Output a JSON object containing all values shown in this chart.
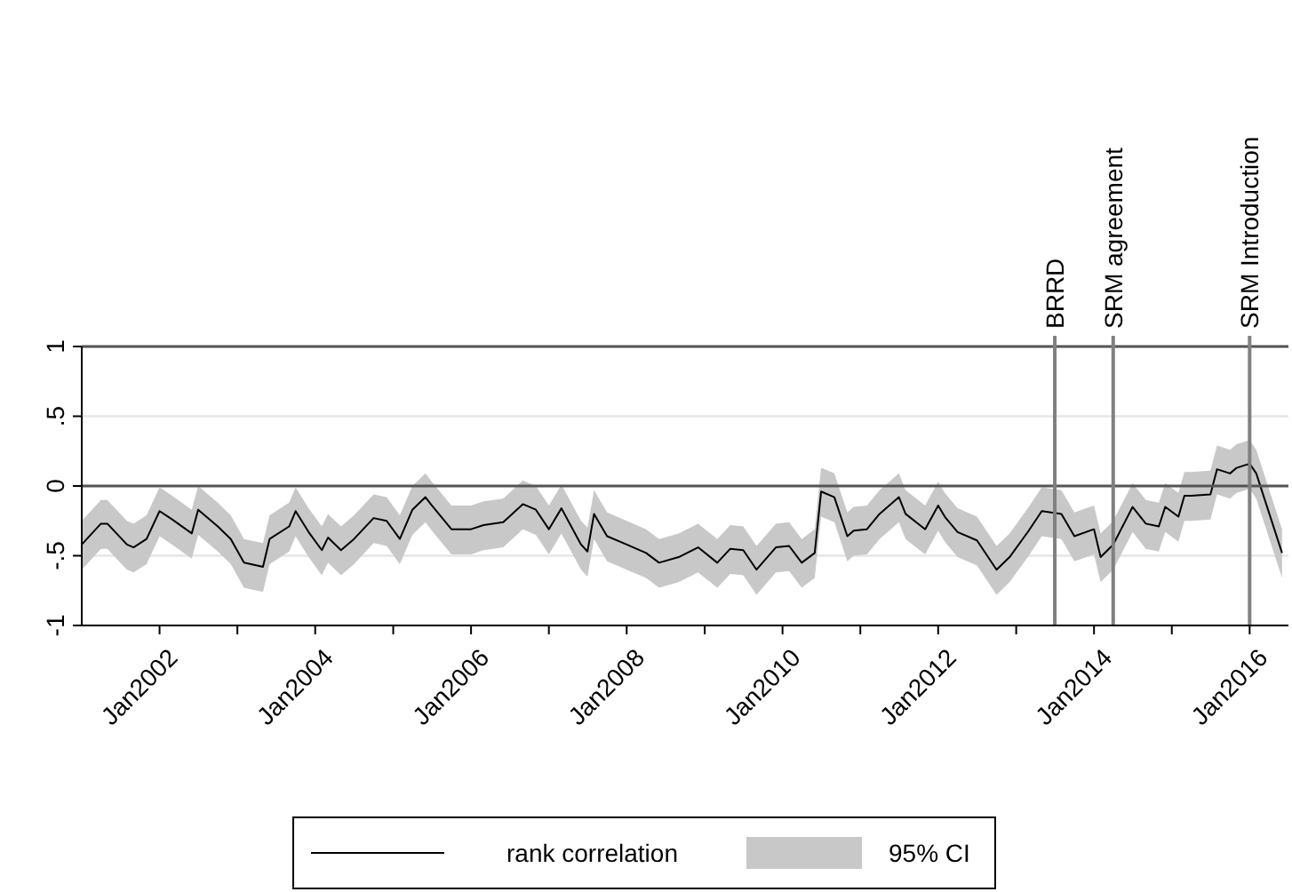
{
  "chart_data": {
    "type": "line",
    "ylim": [
      -1,
      1
    ],
    "yticks": [
      -1,
      {
        "value": -0.5,
        "label": "-.5"
      },
      0,
      {
        "value": 0.5,
        "label": ".5"
      },
      1
    ],
    "xlim": [
      "2001-01",
      "2016-07"
    ],
    "xticks": [
      {
        "value": "2002-01",
        "label": "Jan2002"
      },
      {
        "value": "2003-01",
        "label": null
      },
      {
        "value": "2004-01",
        "label": "Jan2004"
      },
      {
        "value": "2005-01",
        "label": null
      },
      {
        "value": "2006-01",
        "label": "Jan2006"
      },
      {
        "value": "2007-01",
        "label": null
      },
      {
        "value": "2008-01",
        "label": "Jan2008"
      },
      {
        "value": "2009-01",
        "label": null
      },
      {
        "value": "2010-01",
        "label": "Jan2010"
      },
      {
        "value": "2011-01",
        "label": null
      },
      {
        "value": "2012-01",
        "label": "Jan2012"
      },
      {
        "value": "2013-01",
        "label": null
      },
      {
        "value": "2014-01",
        "label": "Jan2014"
      },
      {
        "value": "2015-01",
        "label": null
      },
      {
        "value": "2016-01",
        "label": "Jan2016"
      }
    ],
    "grid": "y",
    "legend": "bottom",
    "annotations": [
      "95% CI"
    ],
    "line_style": "solid",
    "marker": "none",
    "x": [
      "2001-01",
      "2001-04",
      "2001-05",
      "2001-08",
      "2001-09",
      "2001-11",
      "2002-01",
      "2002-03",
      "2002-06",
      "2002-07",
      "2002-10",
      "2002-12",
      "2003-02",
      "2003-05",
      "2003-06",
      "2003-09",
      "2003-10",
      "2003-12",
      "2004-02",
      "2004-03",
      "2004-05",
      "2004-07",
      "2004-10",
      "2004-12",
      "2005-02",
      "2005-04",
      "2005-06",
      "2005-07",
      "2005-10",
      "2006-01",
      "2006-03",
      "2006-06",
      "2006-09",
      "2006-11",
      "2007-01",
      "2007-03",
      "2007-06",
      "2007-07",
      "2007-08",
      "2007-10",
      "2008-01",
      "2008-04",
      "2008-06",
      "2008-09",
      "2008-12",
      "2009-03",
      "2009-05",
      "2009-07",
      "2009-09",
      "2009-12",
      "2010-02",
      "2010-04",
      "2010-06",
      "2010-07",
      "2010-09",
      "2010-11",
      "2010-12",
      "2011-02",
      "2011-04",
      "2011-07",
      "2011-08",
      "2011-11",
      "2012-01",
      "2012-02",
      "2012-04",
      "2012-07",
      "2012-10",
      "2012-12",
      "2013-03",
      "2013-05",
      "2013-08",
      "2013-10",
      "2014-01",
      "2014-02",
      "2014-04",
      "2014-07",
      "2014-09",
      "2014-11",
      "2014-12",
      "2015-02",
      "2015-03",
      "2015-04",
      "2015-07",
      "2015-08",
      "2015-10",
      "2015-11",
      "2016-01",
      "2016-02",
      "2016-06"
    ],
    "series": [
      {
        "name": "rank correlation",
        "color": "#000000",
        "upper": [
          -0.25,
          -0.1,
          -0.1,
          -0.25,
          -0.27,
          -0.21,
          -0.01,
          -0.07,
          -0.17,
          0,
          -0.12,
          -0.21,
          -0.38,
          -0.41,
          -0.21,
          -0.12,
          -0.01,
          -0.16,
          -0.29,
          -0.2,
          -0.29,
          -0.21,
          -0.06,
          -0.08,
          -0.21,
          0,
          0.09,
          0.03,
          -0.14,
          -0.14,
          -0.11,
          -0.09,
          0.04,
          0,
          -0.14,
          0.01,
          -0.25,
          -0.3,
          -0.03,
          -0.19,
          -0.25,
          -0.31,
          -0.38,
          -0.34,
          -0.27,
          -0.38,
          -0.28,
          -0.29,
          -0.43,
          -0.27,
          -0.26,
          -0.38,
          -0.31,
          0.13,
          0.09,
          -0.19,
          -0.15,
          -0.14,
          -0.03,
          0.09,
          -0.03,
          -0.14,
          0.03,
          -0.05,
          -0.16,
          -0.22,
          -0.43,
          -0.34,
          -0.15,
          -0.01,
          -0.03,
          -0.19,
          -0.14,
          -0.34,
          -0.25,
          0.02,
          -0.1,
          -0.12,
          0.02,
          -0.05,
          0.1,
          0.1,
          0.11,
          0.29,
          0.26,
          0.3,
          0.33,
          0.26,
          -0.31
        ],
        "lower": [
          -0.6,
          -0.45,
          -0.45,
          -0.6,
          -0.62,
          -0.56,
          -0.36,
          -0.42,
          -0.52,
          -0.35,
          -0.47,
          -0.56,
          -0.73,
          -0.76,
          -0.56,
          -0.47,
          -0.36,
          -0.51,
          -0.64,
          -0.55,
          -0.64,
          -0.56,
          -0.41,
          -0.43,
          -0.56,
          -0.35,
          -0.26,
          -0.32,
          -0.49,
          -0.49,
          -0.46,
          -0.44,
          -0.31,
          -0.35,
          -0.49,
          -0.34,
          -0.6,
          -0.65,
          -0.38,
          -0.54,
          -0.6,
          -0.66,
          -0.73,
          -0.69,
          -0.62,
          -0.73,
          -0.63,
          -0.64,
          -0.78,
          -0.62,
          -0.61,
          -0.73,
          -0.66,
          -0.22,
          -0.26,
          -0.54,
          -0.5,
          -0.49,
          -0.38,
          -0.26,
          -0.38,
          -0.49,
          -0.32,
          -0.4,
          -0.51,
          -0.57,
          -0.78,
          -0.69,
          -0.5,
          -0.36,
          -0.38,
          -0.54,
          -0.49,
          -0.69,
          -0.6,
          -0.33,
          -0.45,
          -0.47,
          -0.33,
          -0.4,
          -0.25,
          -0.25,
          -0.24,
          -0.06,
          -0.09,
          -0.05,
          -0.02,
          -0.09,
          -0.66
        ],
        "values": [
          -0.42,
          -0.27,
          -0.27,
          -0.42,
          -0.44,
          -0.38,
          -0.18,
          -0.24,
          -0.34,
          -0.17,
          -0.29,
          -0.38,
          -0.55,
          -0.58,
          -0.38,
          -0.29,
          -0.18,
          -0.33,
          -0.46,
          -0.37,
          -0.46,
          -0.38,
          -0.23,
          -0.25,
          -0.38,
          -0.17,
          -0.08,
          -0.14,
          -0.31,
          -0.31,
          -0.28,
          -0.26,
          -0.13,
          -0.17,
          -0.31,
          -0.16,
          -0.42,
          -0.47,
          -0.2,
          -0.36,
          -0.42,
          -0.48,
          -0.55,
          -0.51,
          -0.44,
          -0.55,
          -0.45,
          -0.46,
          -0.6,
          -0.44,
          -0.43,
          -0.55,
          -0.48,
          -0.04,
          -0.08,
          -0.36,
          -0.32,
          -0.31,
          -0.2,
          -0.08,
          -0.2,
          -0.31,
          -0.14,
          -0.22,
          -0.33,
          -0.39,
          -0.6,
          -0.51,
          -0.32,
          -0.18,
          -0.2,
          -0.36,
          -0.31,
          -0.51,
          -0.42,
          -0.15,
          -0.27,
          -0.29,
          -0.15,
          -0.22,
          -0.07,
          -0.07,
          -0.06,
          0.12,
          0.09,
          0.13,
          0.16,
          0.09,
          -0.48
        ]
      }
    ],
    "ref_lines": [
      {
        "axis": "y",
        "value": 0,
        "color": "#555555"
      },
      {
        "axis": "x",
        "value": "2013-07",
        "label": "BRRD",
        "color": "#808080"
      },
      {
        "axis": "x",
        "value": "2014-04",
        "label": "SRM agreement",
        "color": "#808080"
      },
      {
        "axis": "x",
        "value": "2016-01",
        "label": "SRM Introduction",
        "color": "#808080"
      }
    ]
  }
}
